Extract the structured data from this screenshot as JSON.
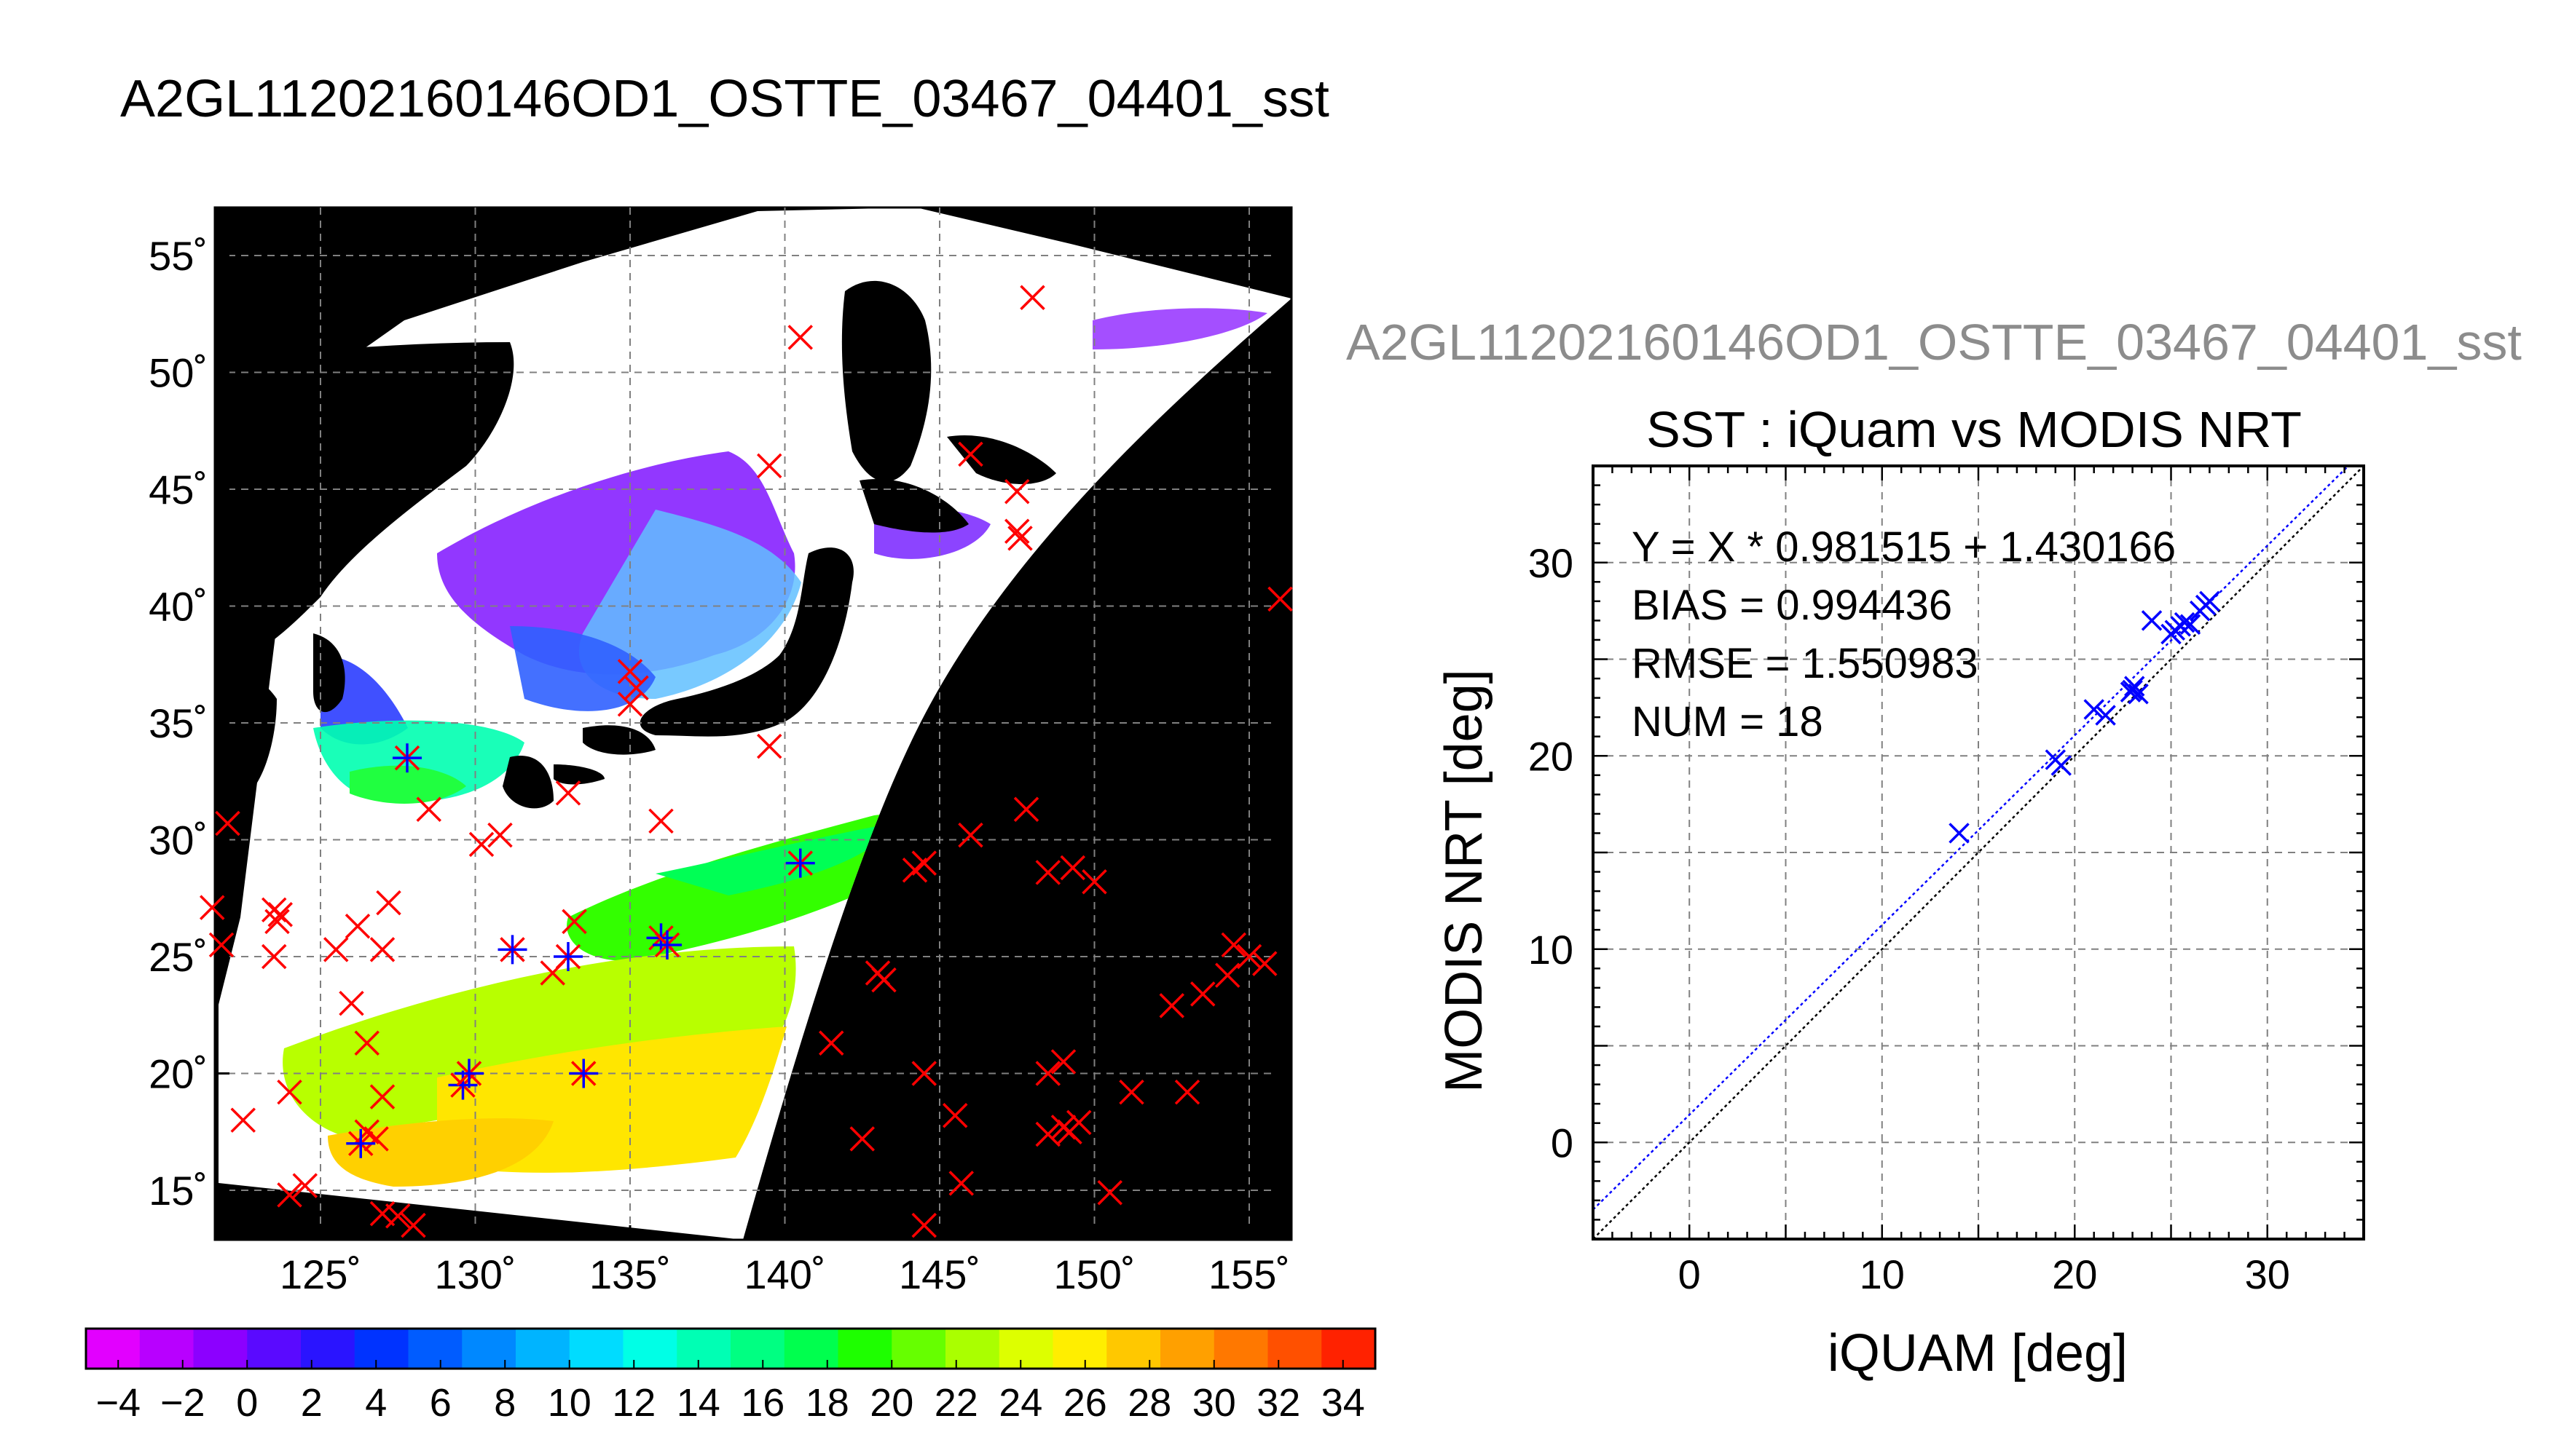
{
  "main_title": "A2GL11202160146OD1_OSTTE_03467_04401_sst",
  "side_title": "A2GL11202160146OD1_OSTTE_03467_04401_sst",
  "chart_data": [
    {
      "type": "map",
      "lat_ticks": [
        "15˚",
        "20˚",
        "25˚",
        "30˚",
        "35˚",
        "40˚",
        "45˚",
        "50˚",
        "55˚"
      ],
      "lon_ticks": [
        "125˚",
        "130˚",
        "135˚",
        "140˚",
        "145˚",
        "150˚",
        "155˚"
      ],
      "colorbar": {
        "min": -5,
        "max": 35,
        "step": 2,
        "tick_labels": [
          "−4",
          "−2",
          "0",
          "2",
          "4",
          "6",
          "8",
          "10",
          "12",
          "14",
          "16",
          "18",
          "20",
          "22",
          "24",
          "26",
          "28",
          "30",
          "32",
          "34"
        ],
        "colors": [
          "#e200ff",
          "#b800ff",
          "#8c00ff",
          "#5a0aff",
          "#2a14ff",
          "#0033ff",
          "#005cff",
          "#0088ff",
          "#00b4ff",
          "#00dcff",
          "#00ffe6",
          "#00ffb4",
          "#00ff82",
          "#00ff4e",
          "#1eff00",
          "#66ff00",
          "#aaff00",
          "#ddff00",
          "#ffee00",
          "#ffc800",
          "#ffa000",
          "#ff7800",
          "#ff5000",
          "#ff2200"
        ]
      },
      "marker_color_excluded": "#ff0000",
      "marker_color_matched": "#0000ff"
    },
    {
      "type": "scatter",
      "title": "SST : iQuam vs MODIS NRT",
      "xlabel": "iQUAM [deg]",
      "ylabel": "MODIS NRT [deg]",
      "xlim": [
        -5,
        35
      ],
      "ylim": [
        -5,
        35
      ],
      "x_ticks": [
        "0",
        "10",
        "20",
        "30"
      ],
      "y_ticks": [
        "0",
        "10",
        "20",
        "30"
      ],
      "grid": true,
      "fit": {
        "slope": 0.981515,
        "intercept": 1.430166
      },
      "stats": {
        "equation": "Y = X * 0.981515 + 1.430166",
        "bias": "BIAS = 0.994436",
        "rmse": "RMSE = 1.550983",
        "num": "NUM = 18"
      },
      "marker_color": "#0000ff",
      "points": [
        {
          "x": 14.0,
          "y": 16.0
        },
        {
          "x": 19.0,
          "y": 19.8
        },
        {
          "x": 19.3,
          "y": 19.5
        },
        {
          "x": 21.0,
          "y": 22.4
        },
        {
          "x": 21.6,
          "y": 22.1
        },
        {
          "x": 22.9,
          "y": 23.3
        },
        {
          "x": 23.1,
          "y": 23.6
        },
        {
          "x": 23.3,
          "y": 23.2
        },
        {
          "x": 24.0,
          "y": 27.0
        },
        {
          "x": 25.2,
          "y": 26.5
        },
        {
          "x": 25.5,
          "y": 26.7
        },
        {
          "x": 25.7,
          "y": 26.9
        },
        {
          "x": 26.0,
          "y": 26.8
        },
        {
          "x": 26.5,
          "y": 27.5
        },
        {
          "x": 26.8,
          "y": 27.8
        },
        {
          "x": 27.0,
          "y": 28.0
        },
        {
          "x": 25.0,
          "y": 26.3
        },
        {
          "x": 23.0,
          "y": 23.4
        }
      ]
    }
  ]
}
